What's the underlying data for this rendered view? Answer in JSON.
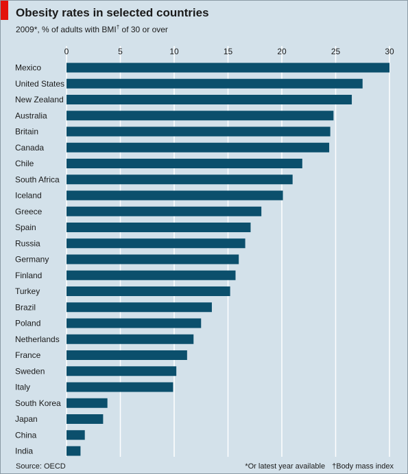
{
  "header": {
    "title": "Obesity rates in selected countries",
    "subtitle_pre": "2009*, % of adults with BMI",
    "subtitle_dagger": "†",
    "subtitle_post": " of 30 or over"
  },
  "footer": {
    "source": "Source: OECD",
    "note_1": "*Or latest year available",
    "note_2": "†Body mass index"
  },
  "colors": {
    "bar": "#0b4f6c",
    "background": "#d3e1ea",
    "grid": "#ffffff",
    "accent": "#e3120b"
  },
  "chart_data": {
    "type": "bar",
    "orientation": "horizontal",
    "title": "Obesity rates in selected countries",
    "subtitle": "2009*, % of adults with BMI† of 30 or over",
    "xlim": [
      0,
      30
    ],
    "xticks": [
      0,
      5,
      10,
      15,
      20,
      25,
      30
    ],
    "grid": true,
    "categories": [
      "Mexico",
      "United States",
      "New Zealand",
      "Australia",
      "Britain",
      "Canada",
      "Chile",
      "South Africa",
      "Iceland",
      "Greece",
      "Spain",
      "Russia",
      "Germany",
      "Finland",
      "Turkey",
      "Brazil",
      "Poland",
      "Netherlands",
      "France",
      "Sweden",
      "Italy",
      "South Korea",
      "Japan",
      "China",
      "India"
    ],
    "values": [
      30.0,
      27.5,
      26.5,
      24.8,
      24.5,
      24.4,
      21.9,
      21.0,
      20.1,
      18.1,
      17.1,
      16.6,
      16.0,
      15.7,
      15.2,
      13.5,
      12.5,
      11.8,
      11.2,
      10.2,
      9.9,
      3.8,
      3.4,
      1.7,
      1.3
    ]
  }
}
